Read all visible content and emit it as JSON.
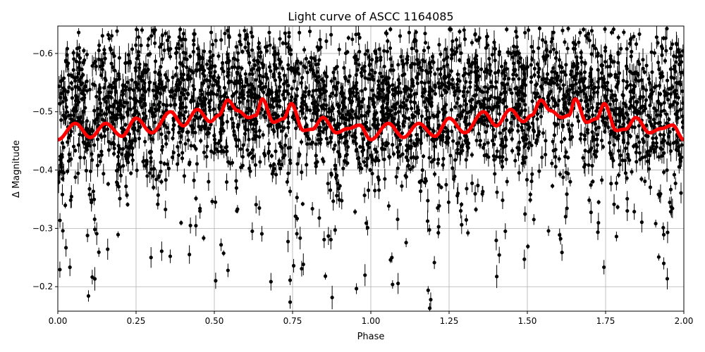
{
  "chart_data": {
    "type": "scatter",
    "title": "Light curve of ASCC 1164085",
    "xlabel": "Phase",
    "ylabel": "Δ Magnitude",
    "xlim": [
      0,
      2
    ],
    "ylim": [
      -0.158,
      -0.647
    ],
    "y_inverted": true,
    "grid": true,
    "xticks": [
      "0.00",
      "0.25",
      "0.50",
      "0.75",
      "1.00",
      "1.25",
      "1.50",
      "1.75",
      "2.00"
    ],
    "xtick_values": [
      0,
      0.25,
      0.5,
      0.75,
      1,
      1.25,
      1.5,
      1.75,
      2
    ],
    "yticks": [
      "−0.6",
      "−0.5",
      "−0.4",
      "−0.3",
      "−0.2"
    ],
    "ytick_values": [
      -0.6,
      -0.5,
      -0.4,
      -0.3,
      -0.2
    ],
    "colors": {
      "points": "#000000",
      "model": "#ff0000"
    },
    "model_curve": {
      "period_repeats": 2,
      "phase": [
        0.0,
        0.056,
        0.104,
        0.153,
        0.205,
        0.25,
        0.3,
        0.36,
        0.401,
        0.446,
        0.487,
        0.514,
        0.543,
        0.574,
        0.61,
        0.633,
        0.653,
        0.689,
        0.721,
        0.746,
        0.784,
        0.813,
        0.847,
        0.89,
        0.926,
        0.964,
        1.0
      ],
      "magnitude": [
        -0.452,
        -0.48,
        -0.456,
        -0.48,
        -0.458,
        -0.489,
        -0.464,
        -0.5,
        -0.476,
        -0.504,
        -0.483,
        -0.494,
        -0.52,
        -0.502,
        -0.49,
        -0.494,
        -0.522,
        -0.482,
        -0.488,
        -0.514,
        -0.468,
        -0.47,
        -0.49,
        -0.464,
        -0.471,
        -0.477,
        -0.452
      ]
    }
  }
}
